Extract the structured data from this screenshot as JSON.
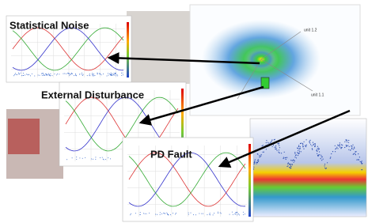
{
  "panels": [
    {
      "label": "Statistical Noise"
    },
    {
      "label": "External Disturbance"
    },
    {
      "label": "PD Fault"
    }
  ],
  "scatter": {
    "axis_labels": [
      "unit 1.2",
      "unit 1.1"
    ]
  }
}
